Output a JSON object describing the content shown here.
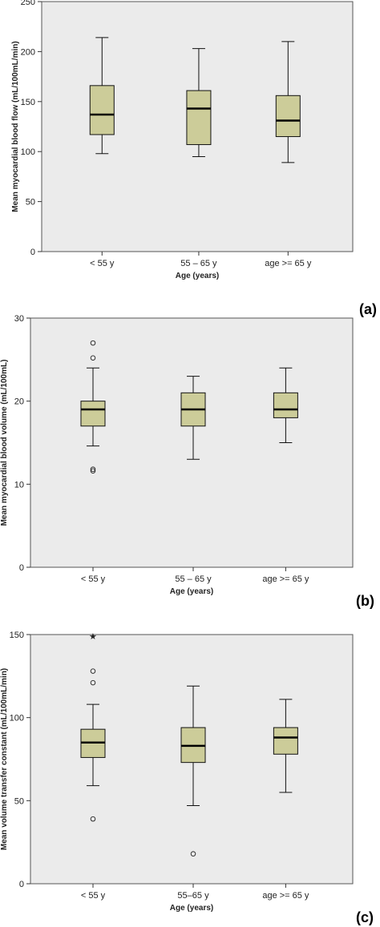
{
  "chart_data": [
    {
      "type": "box",
      "panel_label": "(a)",
      "xlabel": "Age (years)",
      "ylabel": "Mean myocardial blood flow (mL/100mL/min)",
      "ylim": [
        0,
        250
      ],
      "yticks": [
        0,
        50,
        100,
        150,
        200,
        250
      ],
      "categories": [
        "< 55 y",
        "55 – 65 y",
        "age >= 65 y"
      ],
      "boxes": [
        {
          "whisker_low": 98,
          "q1": 117,
          "median": 137,
          "q3": 166,
          "whisker_high": 214,
          "outliers": [],
          "extremes": []
        },
        {
          "whisker_low": 95,
          "q1": 107,
          "median": 143,
          "q3": 161,
          "whisker_high": 203,
          "outliers": [],
          "extremes": []
        },
        {
          "whisker_low": 89,
          "q1": 115,
          "median": 131,
          "q3": 156,
          "whisker_high": 210,
          "outliers": [],
          "extremes": []
        }
      ],
      "colors": {
        "box_fill": "#cccc99",
        "plot_bg": "#ebebeb"
      }
    },
    {
      "type": "box",
      "panel_label": "(b)",
      "xlabel": "Age (years)",
      "ylabel": "Mean myocardial blood volume (mL/100mL)",
      "ylim": [
        0,
        30
      ],
      "yticks": [
        0,
        10,
        20,
        30
      ],
      "categories": [
        "< 55 y",
        "55 – 65 y",
        "age >= 65 y"
      ],
      "boxes": [
        {
          "whisker_low": 14.6,
          "q1": 17,
          "median": 19,
          "q3": 20,
          "whisker_high": 24,
          "outliers": [
            27,
            25.2,
            11.8,
            11.6
          ],
          "extremes": []
        },
        {
          "whisker_low": 13,
          "q1": 17,
          "median": 19,
          "q3": 21,
          "whisker_high": 23,
          "outliers": [],
          "extremes": []
        },
        {
          "whisker_low": 15,
          "q1": 18,
          "median": 19,
          "q3": 21,
          "whisker_high": 24,
          "outliers": [],
          "extremes": []
        }
      ],
      "colors": {
        "box_fill": "#cccc99",
        "plot_bg": "#ebebeb"
      }
    },
    {
      "type": "box",
      "panel_label": "(c)",
      "xlabel": "Age (years)",
      "ylabel": "Mean volume transfer constant (mL/100mL/min)",
      "ylim": [
        0,
        150
      ],
      "yticks": [
        0,
        50,
        100,
        150
      ],
      "categories": [
        "< 55 y",
        "55–65 y",
        "age >= 65 y"
      ],
      "boxes": [
        {
          "whisker_low": 59,
          "q1": 76,
          "median": 85,
          "q3": 93,
          "whisker_high": 108,
          "outliers": [
            128,
            121,
            39
          ],
          "extremes": [
            149
          ]
        },
        {
          "whisker_low": 47,
          "q1": 73,
          "median": 83,
          "q3": 94,
          "whisker_high": 119,
          "outliers": [
            18
          ],
          "extremes": []
        },
        {
          "whisker_low": 55,
          "q1": 78,
          "median": 88,
          "q3": 94,
          "whisker_high": 111,
          "outliers": [],
          "extremes": []
        }
      ],
      "colors": {
        "box_fill": "#cccc99",
        "plot_bg": "#ebebeb"
      }
    }
  ]
}
